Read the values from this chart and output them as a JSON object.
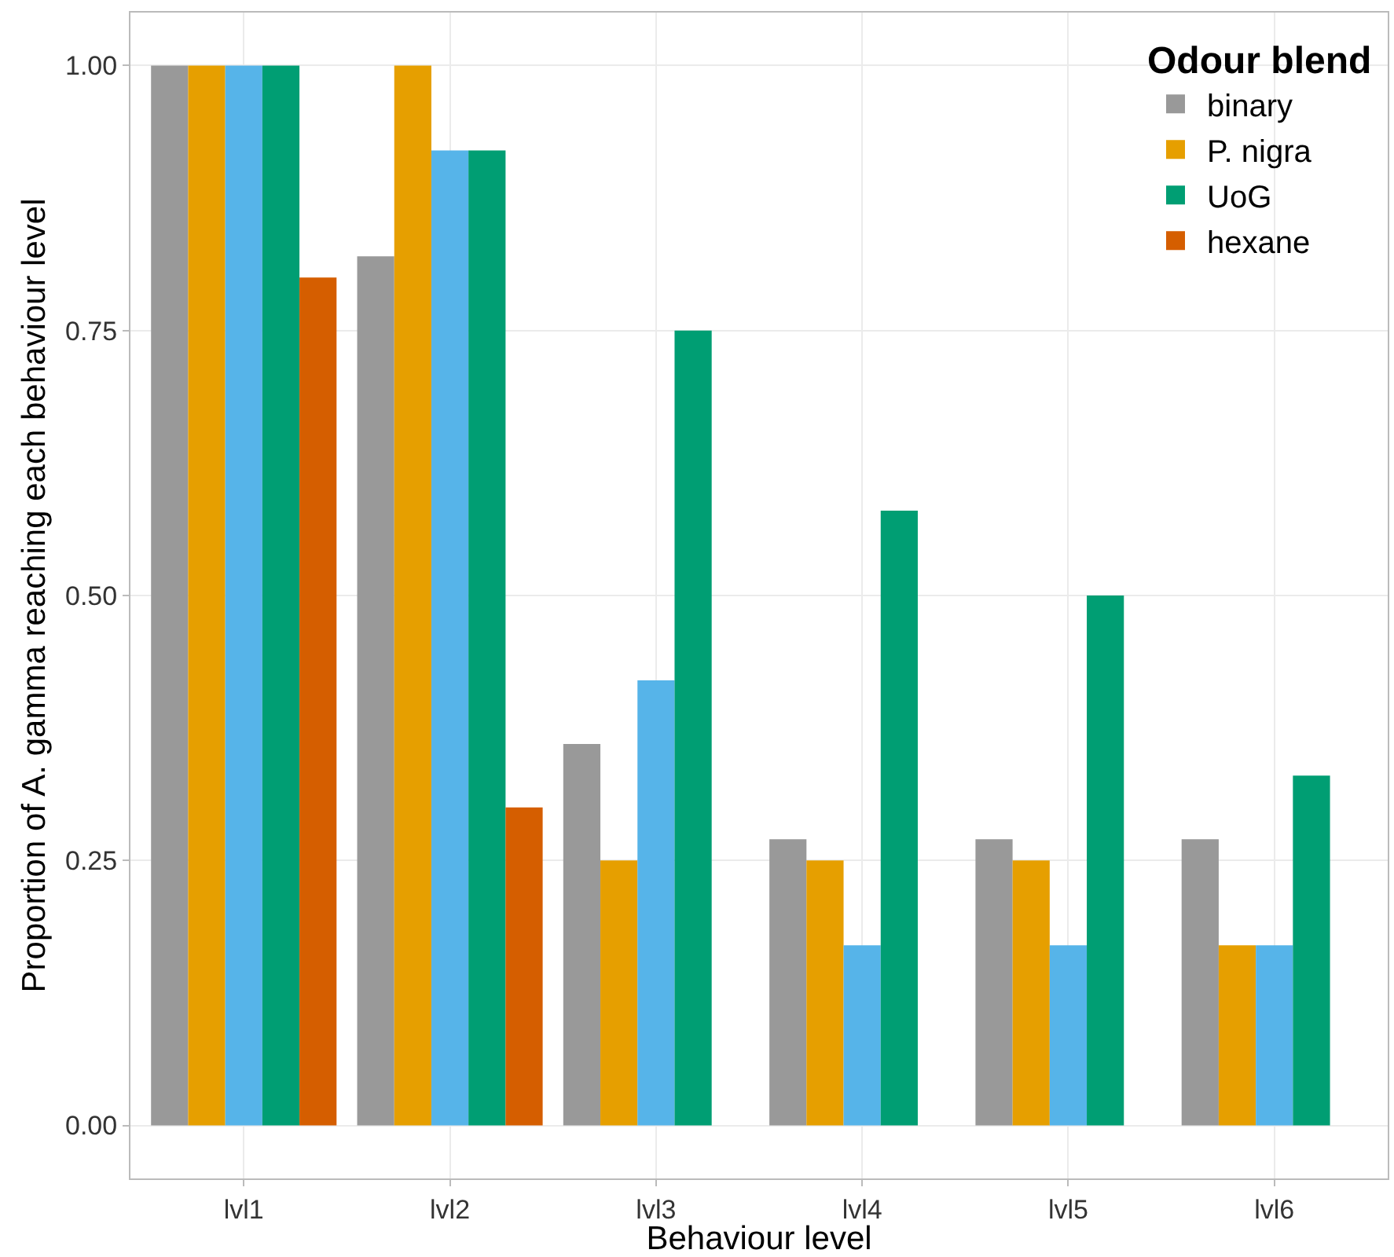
{
  "chart_data": {
    "type": "bar",
    "xlabel": "Behaviour level",
    "ylabel": "Proportion of A. gamma reaching each behaviour level",
    "legend_title": "Odour blend",
    "categories": [
      "lvl1",
      "lvl2",
      "lvl3",
      "lvl4",
      "lvl5",
      "lvl6"
    ],
    "series": [
      {
        "name": "binary",
        "color": "#999999",
        "values": [
          1.0,
          0.82,
          0.36,
          0.27,
          0.27,
          0.27
        ]
      },
      {
        "name": "P. nigra",
        "color": "#e69f00",
        "values": [
          1.0,
          1.0,
          0.25,
          0.25,
          0.25,
          0.17
        ]
      },
      {
        "color": "#56b4e9",
        "values": [
          1.0,
          0.92,
          0.42,
          0.17,
          0.17,
          0.17
        ]
      },
      {
        "name": "UoG",
        "color": "#009e73",
        "values": [
          1.0,
          0.92,
          0.75,
          0.58,
          0.5,
          0.33
        ]
      },
      {
        "name": "hexane",
        "color": "#d55e00",
        "values": [
          0.8,
          0.3,
          0,
          0,
          0,
          0
        ]
      }
    ],
    "ylim": [
      -0.05,
      1.05
    ],
    "yticks": [
      {
        "value": 0,
        "label": "0.00"
      },
      {
        "value": 0.25,
        "label": "0.25"
      },
      {
        "value": 0.5,
        "label": "0.50"
      },
      {
        "value": 0.75,
        "label": "0.75"
      },
      {
        "value": 1,
        "label": "1.00"
      }
    ],
    "grid": true,
    "legend": "top right"
  }
}
